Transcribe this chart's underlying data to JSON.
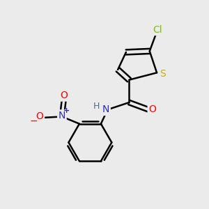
{
  "background_color": "#ebebeb",
  "bond_color": "#000000",
  "atom_colors": {
    "Cl": "#82be00",
    "S": "#c8b000",
    "N": "#3030b0",
    "O": "#ff0000",
    "H": "#507080",
    "C": "#000000"
  },
  "figsize": [
    3.0,
    3.0
  ],
  "dpi": 100,
  "xlim": [
    0,
    10
  ],
  "ylim": [
    0,
    10
  ]
}
